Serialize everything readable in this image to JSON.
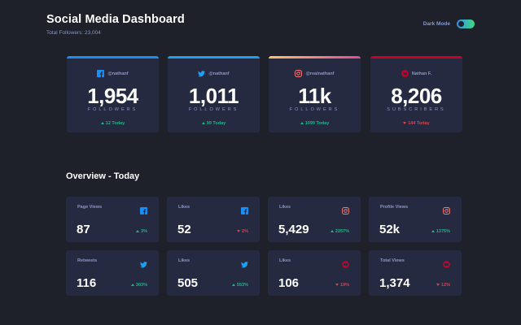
{
  "header": {
    "title": "Social Media Dashboard",
    "total_followers": "Total Followers: 23,004"
  },
  "mode": {
    "label": "Dark Mode",
    "enabled": true
  },
  "colors": {
    "facebook": "#198ff5",
    "twitter": "#1ca0f2",
    "instagram_start": "#fdc468",
    "instagram_end": "#df4996",
    "youtube": "#c4032b",
    "up": "#1eb589",
    "down": "#dc414c"
  },
  "cards": [
    {
      "platform": "facebook",
      "icon": "facebook-icon",
      "handle": "@nathanf",
      "count": "1,954",
      "unit": "FOLLOWERS",
      "delta": "12 Today",
      "trend": "up"
    },
    {
      "platform": "twitter",
      "icon": "twitter-icon",
      "handle": "@nathanf",
      "count": "1,011",
      "unit": "FOLLOWERS",
      "delta": "99 Today",
      "trend": "up"
    },
    {
      "platform": "instagram",
      "icon": "instagram-icon",
      "handle": "@realnathanf",
      "count": "11k",
      "unit": "FOLLOWERS",
      "delta": "1099 Today",
      "trend": "up"
    },
    {
      "platform": "youtube",
      "icon": "youtube-icon",
      "handle": "Nathan F.",
      "count": "8,206",
      "unit": "SUBSCRIBERS",
      "delta": "144 Today",
      "trend": "down"
    }
  ],
  "overview": {
    "title": "Overview - Today",
    "items": [
      {
        "label": "Page Views",
        "icon": "facebook-icon",
        "value": "87",
        "pct": "3%",
        "trend": "up"
      },
      {
        "label": "Likes",
        "icon": "facebook-icon",
        "value": "52",
        "pct": "2%",
        "trend": "down"
      },
      {
        "label": "Likes",
        "icon": "instagram-icon",
        "value": "5,429",
        "pct": "2257%",
        "trend": "up"
      },
      {
        "label": "Profile Views",
        "icon": "instagram-icon",
        "value": "52k",
        "pct": "1375%",
        "trend": "up"
      },
      {
        "label": "Retweets",
        "icon": "twitter-icon",
        "value": "116",
        "pct": "303%",
        "trend": "up"
      },
      {
        "label": "Likes",
        "icon": "twitter-icon",
        "value": "505",
        "pct": "553%",
        "trend": "up"
      },
      {
        "label": "Likes",
        "icon": "youtube-icon",
        "value": "106",
        "pct": "19%",
        "trend": "down"
      },
      {
        "label": "Total Views",
        "icon": "youtube-icon",
        "value": "1,374",
        "pct": "12%",
        "trend": "down"
      }
    ]
  }
}
